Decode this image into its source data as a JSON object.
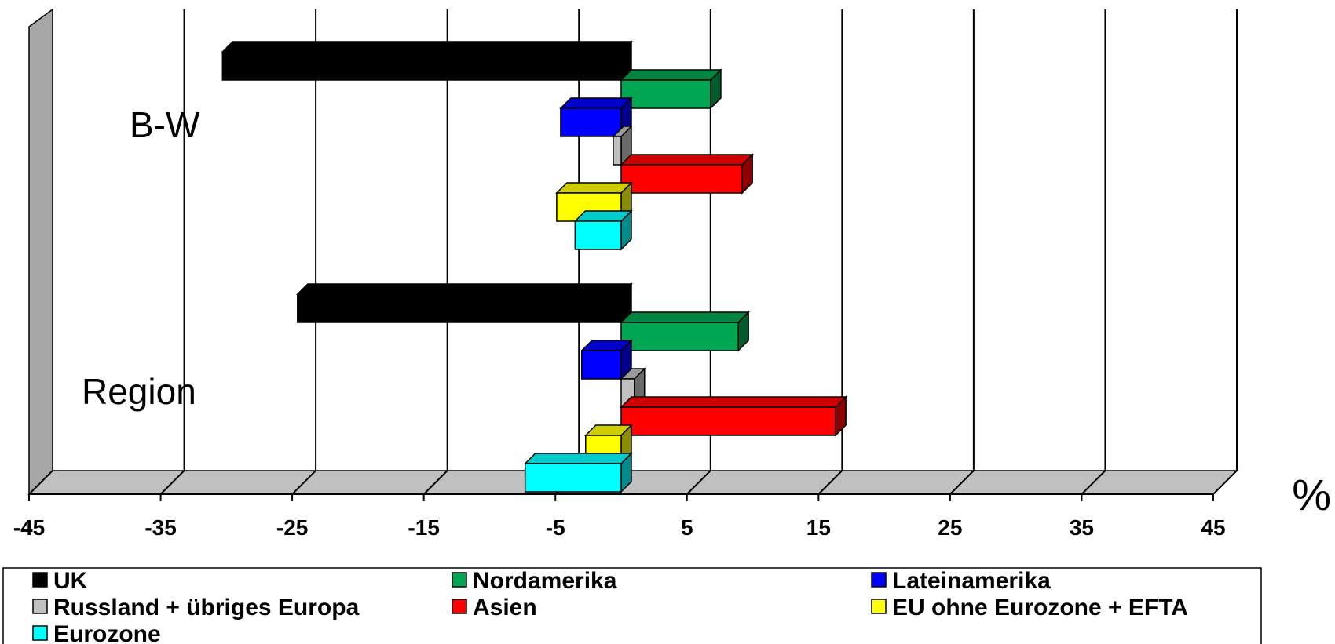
{
  "chart_data": {
    "type": "bar",
    "orientation": "horizontal",
    "style": "3d",
    "unit_label": "%",
    "categories": [
      "B-W",
      "Region"
    ],
    "xlim": [
      -45,
      45
    ],
    "x_ticks": [
      -45,
      -35,
      -25,
      -15,
      -5,
      5,
      15,
      25,
      35,
      45
    ],
    "x_tick_labels": [
      "-45",
      "-35",
      "-25",
      "-15",
      "-5",
      "5",
      "15",
      "25",
      "35",
      "45"
    ],
    "grid": true,
    "legend_position": "bottom",
    "series": [
      {
        "name": "UK",
        "color": "#000000",
        "values": [
          -30.3,
          -24.6
        ]
      },
      {
        "name": "Nordamerika",
        "color": "#00a651",
        "values": [
          6.8,
          8.9
        ]
      },
      {
        "name": "Lateinamerika",
        "color": "#0000ff",
        "values": [
          -4.6,
          -3.0
        ]
      },
      {
        "name": "Russland + übriges Europa",
        "color": "#c0c0c0",
        "values": [
          -0.6,
          1.0
        ]
      },
      {
        "name": "Asien",
        "color": "#ff0000",
        "values": [
          9.2,
          16.3
        ]
      },
      {
        "name": "EU ohne Eurozone + EFTA",
        "color": "#ffff00",
        "values": [
          -4.9,
          -2.7
        ]
      },
      {
        "name": "Eurozone",
        "color": "#00ffff",
        "values": [
          -3.5,
          -7.3
        ]
      }
    ]
  }
}
